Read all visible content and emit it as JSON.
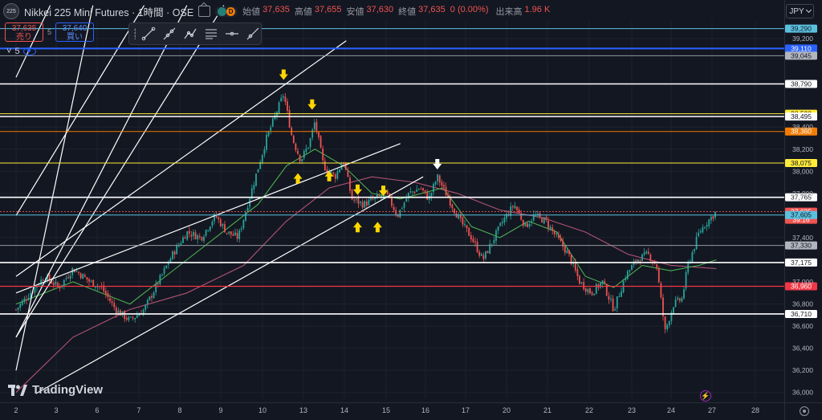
{
  "header": {
    "symbol_badge": "225",
    "symbol_title": "Nikkei 225 Mini Futures · 1時間 · OSE",
    "status_d": "D",
    "ohlc": {
      "open_label": "始値",
      "open": "37,635",
      "high_label": "高値",
      "high": "37,655",
      "low_label": "安値",
      "low": "37,630",
      "close_label": "終値",
      "close": "37,635",
      "change": "0 (0.00%)",
      "volume_label": "出来高",
      "volume": "1.96 K"
    }
  },
  "trade": {
    "sell_price": "37,635",
    "sell_label": "売り",
    "spread": "5",
    "buy_price": "37,640",
    "buy_label": "買い"
  },
  "indicator_toggle": {
    "count": "5"
  },
  "currency": "JPY",
  "branding": "TradingView",
  "colors": {
    "background": "#131722",
    "up": "#26a69a",
    "down": "#ef5350",
    "grid": "#1e222d",
    "ma_fast": "#4caf50",
    "ma_slow": "#b05374",
    "level_white": "#ffffff",
    "level_yellow": "#ffeb3b",
    "level_orange": "#f57c00",
    "level_red": "#f23645",
    "level_blue": "#2962ff",
    "level_cyan": "#5bc0de",
    "level_gray": "#9598a1",
    "arrow_yellow": "#ffd600",
    "arrow_white": "#ffffff"
  },
  "chart_data": {
    "type": "candlestick",
    "instrument": "Nikkei 225 Mini Futures",
    "timeframe": "1時間",
    "exchange": "OSE",
    "ylim": [
      35940,
      39360
    ],
    "y_ticks": [
      "39,200",
      "38,400",
      "38,200",
      "38,000",
      "37,800",
      "37,400",
      "37,000",
      "36,800",
      "36,600",
      "36,400",
      "36,200",
      "36,000"
    ],
    "x_ticks": [
      "2",
      "3",
      "6",
      "7",
      "8",
      "9",
      "10",
      "13",
      "14",
      "15",
      "16",
      "17",
      "20",
      "21",
      "22",
      "23",
      "24",
      "27",
      "28"
    ],
    "price_levels": [
      {
        "price": 39290,
        "label": "39,290",
        "style": "cyan"
      },
      {
        "price": 39110,
        "label": "39,110",
        "style": "blue"
      },
      {
        "price": 39045,
        "label": "39,045",
        "style": "gray"
      },
      {
        "price": 38790,
        "label": "38,790",
        "style": "white"
      },
      {
        "price": 38520,
        "label": "38,520",
        "style": "yellow"
      },
      {
        "price": 38495,
        "label": "38,495",
        "style": "white"
      },
      {
        "price": 38360,
        "label": "38,360",
        "style": "orange"
      },
      {
        "price": 38075,
        "label": "38,075",
        "style": "yellow"
      },
      {
        "price": 37765,
        "label": "37,765",
        "style": "white"
      },
      {
        "price": 37635,
        "label": "37,635",
        "sub": "39:16",
        "style": "current"
      },
      {
        "price": 37605,
        "label": "37,605",
        "style": "cyan"
      },
      {
        "price": 37330,
        "label": "37,330",
        "style": "gray"
      },
      {
        "price": 37175,
        "label": "37,175",
        "style": "white"
      },
      {
        "price": 36960,
        "label": "36,960",
        "style": "red"
      },
      {
        "price": 36710,
        "label": "36,710",
        "style": "white"
      }
    ],
    "price_path": [
      [
        2,
        36750
      ],
      [
        2.5,
        36900
      ],
      [
        3,
        37050
      ],
      [
        3.5,
        36950
      ],
      [
        4,
        37120
      ],
      [
        4.6,
        37000
      ],
      [
        5,
        36950
      ],
      [
        5.5,
        36750
      ],
      [
        6,
        36650
      ],
      [
        6.5,
        36750
      ],
      [
        7,
        37000
      ],
      [
        7.5,
        37250
      ],
      [
        8,
        37450
      ],
      [
        8.5,
        37400
      ],
      [
        9,
        37600
      ],
      [
        9.4,
        37450
      ],
      [
        9.8,
        37400
      ],
      [
        10.3,
        37850
      ],
      [
        10.8,
        38300
      ],
      [
        11.1,
        38500
      ],
      [
        11.4,
        38700
      ],
      [
        11.7,
        38300
      ],
      [
        12,
        38100
      ],
      [
        12.3,
        38250
      ],
      [
        12.5,
        38450
      ],
      [
        12.8,
        38050
      ],
      [
        13.2,
        37950
      ],
      [
        13.5,
        38100
      ],
      [
        13.8,
        37750
      ],
      [
        14.2,
        37700
      ],
      [
        14.6,
        37750
      ],
      [
        15,
        37800
      ],
      [
        15.4,
        37600
      ],
      [
        15.8,
        37800
      ],
      [
        16.2,
        37850
      ],
      [
        16.5,
        37750
      ],
      [
        16.8,
        37950
      ],
      [
        17.2,
        37750
      ],
      [
        17.6,
        37550
      ],
      [
        18,
        37400
      ],
      [
        18.4,
        37200
      ],
      [
        18.7,
        37350
      ],
      [
        19.1,
        37550
      ],
      [
        19.5,
        37700
      ],
      [
        19.9,
        37500
      ],
      [
        20.2,
        37600
      ],
      [
        20.6,
        37550
      ],
      [
        21,
        37400
      ],
      [
        21.4,
        37250
      ],
      [
        21.8,
        37000
      ],
      [
        22.2,
        36900
      ],
      [
        22.6,
        37000
      ],
      [
        23,
        36750
      ],
      [
        23.4,
        37050
      ],
      [
        23.8,
        37200
      ],
      [
        24.2,
        37250
      ],
      [
        24.5,
        37150
      ],
      [
        24.8,
        36550
      ],
      [
        25.1,
        36800
      ],
      [
        25.4,
        36850
      ],
      [
        25.6,
        37150
      ],
      [
        26,
        37450
      ],
      [
        26.3,
        37550
      ],
      [
        26.6,
        37635
      ]
    ],
    "ma_fast": [
      [
        2,
        36800
      ],
      [
        4,
        37000
      ],
      [
        6,
        36800
      ],
      [
        8,
        37200
      ],
      [
        9.5,
        37500
      ],
      [
        10.5,
        37700
      ],
      [
        11.5,
        38050
      ],
      [
        12.5,
        38200
      ],
      [
        13.5,
        38050
      ],
      [
        14.5,
        37800
      ],
      [
        15.5,
        37750
      ],
      [
        17,
        37850
      ],
      [
        18,
        37500
      ],
      [
        19,
        37400
      ],
      [
        20,
        37550
      ],
      [
        21,
        37450
      ],
      [
        22,
        37050
      ],
      [
        23,
        36950
      ],
      [
        24,
        37150
      ],
      [
        25,
        37100
      ],
      [
        26,
        37150
      ],
      [
        26.6,
        37200
      ]
    ],
    "ma_slow": [
      [
        2,
        36000
      ],
      [
        4,
        36500
      ],
      [
        6,
        36750
      ],
      [
        8,
        36900
      ],
      [
        10,
        37150
      ],
      [
        11.5,
        37550
      ],
      [
        13,
        37850
      ],
      [
        14.5,
        37950
      ],
      [
        16,
        37900
      ],
      [
        17.5,
        37800
      ],
      [
        19,
        37650
      ],
      [
        20.5,
        37580
      ],
      [
        22,
        37450
      ],
      [
        23.5,
        37250
      ],
      [
        25,
        37150
      ],
      [
        26.6,
        37120
      ]
    ],
    "trendlines": [
      {
        "from": [
          2,
          37050
        ],
        "to": [
          13.6,
          39180
        ]
      },
      {
        "from": [
          2,
          36900
        ],
        "to": [
          15.5,
          38250
        ]
      },
      {
        "from": [
          2.7,
          35990
        ],
        "to": [
          16.3,
          37950
        ]
      },
      {
        "from": [
          2,
          37600
        ],
        "to": [
          6.5,
          39500
        ]
      },
      {
        "from": [
          2,
          36500
        ],
        "to": [
          8.0,
          39500
        ]
      },
      {
        "from": [
          2,
          36500
        ],
        "to": [
          9.3,
          39500
        ]
      },
      {
        "from": [
          2,
          36200
        ],
        "to": [
          4.7,
          39500
        ]
      },
      {
        "from": [
          2,
          38850
        ],
        "to": [
          3.2,
          39500
        ]
      }
    ],
    "arrows": [
      {
        "x": 11.4,
        "price": 38870,
        "dir": "down",
        "color": "yellow"
      },
      {
        "x": 12.4,
        "price": 38600,
        "dir": "down",
        "color": "yellow"
      },
      {
        "x": 11.9,
        "price": 37940,
        "dir": "up",
        "color": "yellow"
      },
      {
        "x": 13.0,
        "price": 37960,
        "dir": "up",
        "color": "yellow"
      },
      {
        "x": 14.0,
        "price": 37830,
        "dir": "down",
        "color": "yellow"
      },
      {
        "x": 14.9,
        "price": 37820,
        "dir": "down",
        "color": "yellow"
      },
      {
        "x": 14.0,
        "price": 37500,
        "dir": "up",
        "color": "yellow"
      },
      {
        "x": 14.7,
        "price": 37500,
        "dir": "up",
        "color": "yellow"
      },
      {
        "x": 16.8,
        "price": 38060,
        "dir": "down",
        "color": "white"
      }
    ]
  }
}
